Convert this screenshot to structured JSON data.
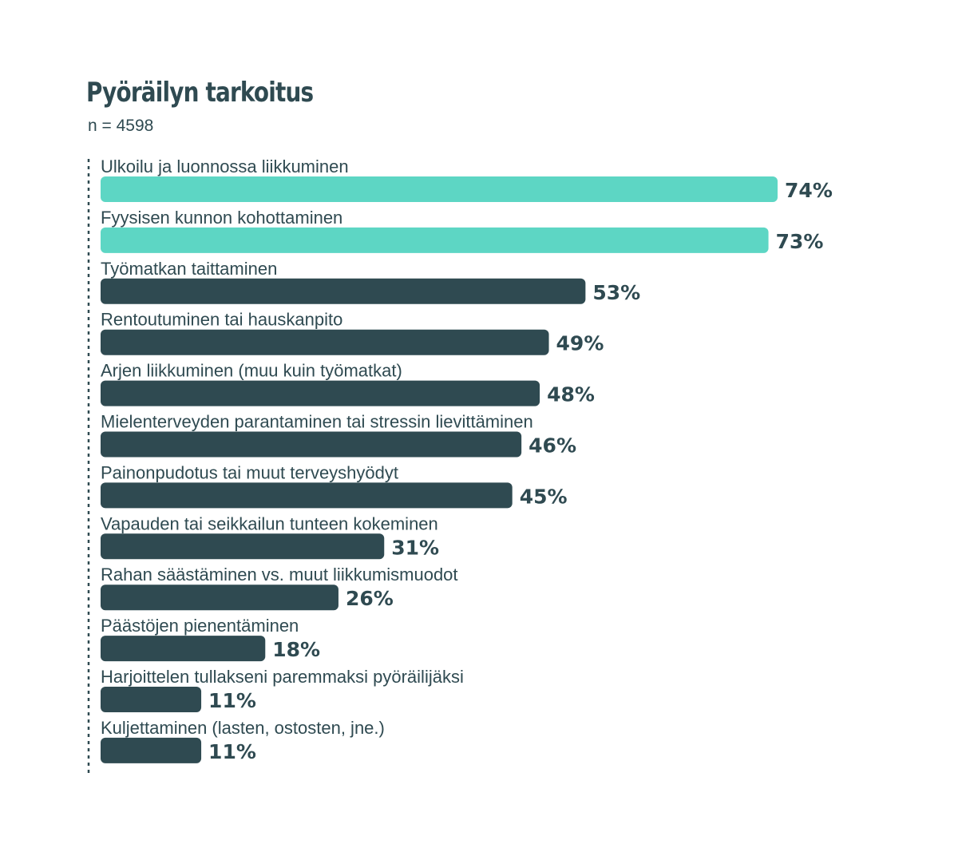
{
  "chart_data": {
    "type": "bar",
    "orientation": "horizontal",
    "title": "Pyöräilyn tarkoitus",
    "subtitle": "n = 4598",
    "value_suffix": "%",
    "xlim": [
      0,
      100
    ],
    "grid": false,
    "categories": [
      "Ulkoilu ja luonnossa liikkuminen",
      "Fyysisen kunnon kohottaminen",
      "Työmatkan taittaminen",
      "Rentoutuminen tai hauskanpito",
      "Arjen liikkuminen (muu kuin työmatkat)",
      "Mielenterveyden parantaminen tai stressin lievittäminen",
      "Painonpudotus tai muut terveyshyödyt",
      "Vapauden tai seikkailun tunteen kokeminen",
      "Rahan säästäminen vs. muut liikkumismuodot",
      "Päästöjen pienentäminen",
      "Harjoittelen tullakseni paremmaksi pyöräilijäksi",
      "Kuljettaminen (lasten, ostosten, jne.)"
    ],
    "values": [
      74,
      73,
      53,
      49,
      48,
      46,
      45,
      31,
      26,
      18,
      11,
      11
    ],
    "highlight_count": 2,
    "colors": {
      "highlight": "#5dd6c4",
      "default": "#2f4a51",
      "text": "#2f4a51",
      "axis": "#2f4a51"
    }
  }
}
